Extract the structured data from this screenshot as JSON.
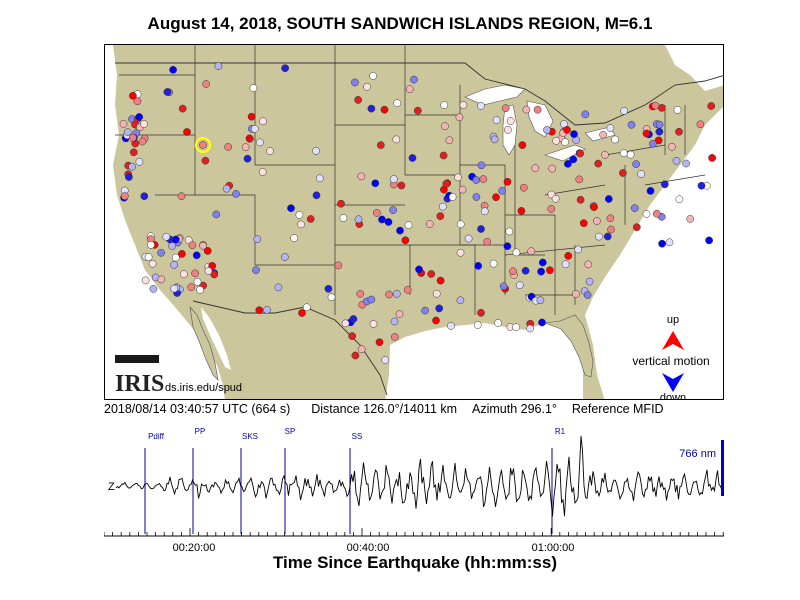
{
  "title": "August 14, 2018, SOUTH SANDWICH ISLANDS REGION, M=6.1",
  "logo": {
    "text": "IRIS",
    "url": "ds.iris.edu/spud"
  },
  "legend": {
    "up": "up",
    "motion": "vertical motion",
    "down": "down"
  },
  "info": {
    "datetime": "2018/08/14 03:40:57 UTC (664 s)",
    "distance": "Distance 126.0°/14011 km",
    "azimuth": "Azimuth 296.1°",
    "reference": "Reference MFID"
  },
  "seismogram": {
    "phases": [
      "Pdiff",
      "PP",
      "SKS",
      "SP",
      "SS",
      "R1"
    ],
    "amplitude_label": "766 nm",
    "z_label": "Z",
    "ticks": [
      "00:20:00",
      "00:40:00",
      "01:00:00"
    ]
  },
  "xlabel": "Time Since Earthquake (hh:mm:ss)",
  "colors": {
    "land": "#cbc69c",
    "water": "#ffffff",
    "up": "#ff0000",
    "down": "#0000ff",
    "phase_line": "#0000aa",
    "reference_ring": "#ffff00"
  }
}
